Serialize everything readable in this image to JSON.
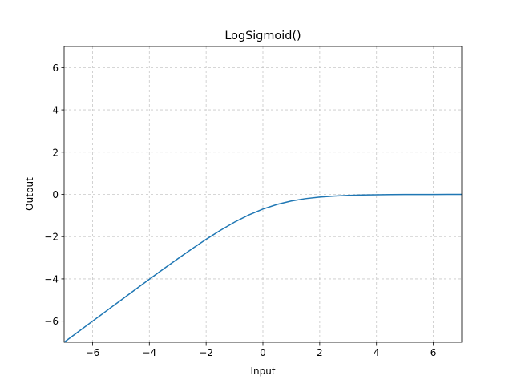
{
  "chart_data": {
    "type": "line",
    "title": "LogSigmoid()",
    "xlabel": "Input",
    "ylabel": "Output",
    "xlim": [
      -7,
      7
    ],
    "ylim": [
      -7,
      7
    ],
    "xticks": [
      -6,
      -4,
      -2,
      0,
      2,
      4,
      6
    ],
    "yticks": [
      -6,
      -4,
      -2,
      0,
      2,
      4,
      6
    ],
    "xtick_labels": [
      "−6",
      "−4",
      "−2",
      "0",
      "2",
      "4",
      "6"
    ],
    "ytick_labels": [
      "−6",
      "−4",
      "−2",
      "0",
      "2",
      "4",
      "6"
    ],
    "grid": true,
    "grid_style": "dashed",
    "line_color": "#1f77b4",
    "series": [
      {
        "x": [
          -7,
          -6.5,
          -6,
          -5.5,
          -5,
          -4.5,
          -4,
          -3.5,
          -3,
          -2.5,
          -2,
          -1.5,
          -1,
          -0.5,
          0,
          0.5,
          1,
          1.5,
          2,
          2.5,
          3,
          3.5,
          4,
          4.5,
          5,
          5.5,
          6,
          6.5,
          7
        ],
        "y": [
          -7.0009,
          -6.5015,
          -6.0025,
          -5.5041,
          -5.0067,
          -4.5111,
          -4.0181,
          -3.5298,
          -3.0486,
          -2.5789,
          -2.1269,
          -1.7014,
          -1.3133,
          -0.9741,
          -0.6931,
          -0.4741,
          -0.3133,
          -0.2014,
          -0.1269,
          -0.0789,
          -0.0486,
          -0.0298,
          -0.0181,
          -0.0111,
          -0.0067,
          -0.0041,
          -0.0025,
          -0.0015,
          -0.0009
        ]
      }
    ]
  }
}
